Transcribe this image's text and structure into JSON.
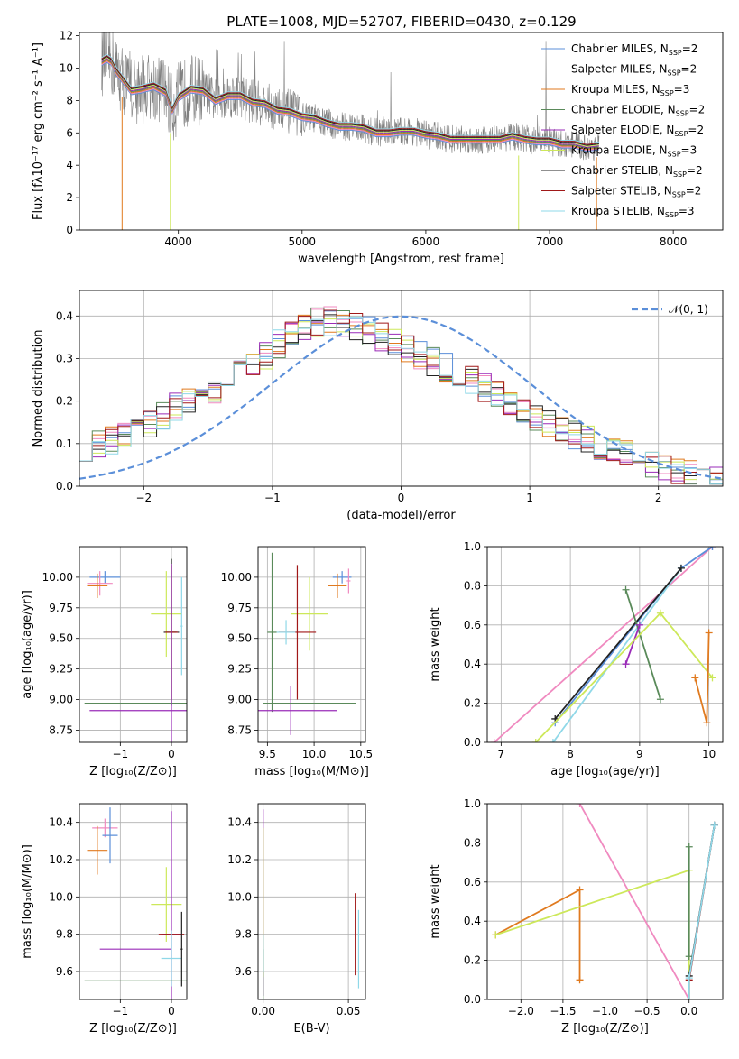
{
  "title": "PLATE=1008, MJD=52707, FIBERID=0430, z=0.129",
  "colors": {
    "chabrier_miles": "#5b8fd9",
    "salpeter_miles": "#f08ac0",
    "kroupa_miles": "#e07a1f",
    "chabrier_elodie": "#5a8a5a",
    "salpeter_elodie": "#9a2bb8",
    "kroupa_elodie": "#cde85a",
    "chabrier_stelib": "#222222",
    "salpeter_stelib": "#a01818",
    "kroupa_stelib": "#8fd8e8",
    "data": "#808080",
    "normal": "#5b8fd9",
    "grid": "#b0b0b0"
  },
  "chart_data": [
    {
      "type": "line",
      "id": "spectrum",
      "xlabel": "wavelength [Angstrom, rest frame]",
      "ylabel": "Flux [fλ10⁻¹⁷ erg cm⁻² s⁻¹ A⁻¹]",
      "xlim": [
        3200,
        8400
      ],
      "ylim": [
        0,
        12.2
      ],
      "xticks": [
        "4000",
        "5000",
        "6000",
        "7000",
        "8000"
      ],
      "yticks": [
        "0",
        "2",
        "4",
        "6",
        "8",
        "10",
        "12"
      ],
      "grid": false,
      "legend_position": "top-right",
      "legend": [
        "Chabrier MILES, N_SSP=2",
        "Salpeter MILES, N_SSP=2",
        "Kroupa MILES, N_SSP=3",
        "Chabrier ELODIE, N_SSP=2",
        "Salpeter ELODIE, N_SSP=2",
        "Kroupa ELODIE, N_SSP=3",
        "Chabrier STELIB, N_SSP=2",
        "Salpeter STELIB, N_SSP=2",
        "Kroupa STELIB, N_SSP=3"
      ],
      "model_curve": {
        "x": [
          3380,
          3420,
          3460,
          3500,
          3560,
          3620,
          3700,
          3800,
          3900,
          3950,
          4000,
          4100,
          4200,
          4300,
          4400,
          4500,
          4600,
          4700,
          4800,
          4900,
          5000,
          5100,
          5200,
          5300,
          5400,
          5500,
          5600,
          5700,
          5800,
          5900,
          6000,
          6100,
          6200,
          6300,
          6400,
          6500,
          6600,
          6700,
          6800,
          6900,
          7000,
          7100,
          7200,
          7300,
          7400
        ],
        "y": [
          10.4,
          10.6,
          10.4,
          9.8,
          9.2,
          8.6,
          8.7,
          8.9,
          8.5,
          7.4,
          8.2,
          8.7,
          8.6,
          8.0,
          8.3,
          8.3,
          7.9,
          7.8,
          7.4,
          7.3,
          7.0,
          6.9,
          6.6,
          6.4,
          6.4,
          6.3,
          6.0,
          6.0,
          6.1,
          6.1,
          5.9,
          5.8,
          5.6,
          5.6,
          5.6,
          5.6,
          5.6,
          5.8,
          5.6,
          5.5,
          5.5,
          5.3,
          5.3,
          5.1,
          5.2
        ]
      },
      "data_curve_note": "observed spectrum drawn in grey"
    },
    {
      "type": "line",
      "id": "residual_hist",
      "xlabel": "(data-model)/error",
      "ylabel": "Normed distribution",
      "xlim": [
        -2.5,
        2.5
      ],
      "ylim": [
        0,
        0.46
      ],
      "xticks": [
        "−2",
        "−1",
        "0",
        "1",
        "2"
      ],
      "yticks": [
        "0.0",
        "0.1",
        "0.2",
        "0.3",
        "0.4"
      ],
      "grid": true,
      "legend_position": "top-right",
      "legend": [
        "𝒩(0, 1)"
      ],
      "bin_width": 0.1,
      "envelope": {
        "x": [
          -2.5,
          -2.2,
          -2.0,
          -1.8,
          -1.5,
          -1.2,
          -1.0,
          -0.8,
          -0.6,
          -0.4,
          -0.2,
          0.0,
          0.2,
          0.4,
          0.6,
          0.8,
          1.0,
          1.2,
          1.5,
          1.8,
          2.0,
          2.2,
          2.5
        ],
        "y": [
          0.09,
          0.11,
          0.13,
          0.18,
          0.22,
          0.27,
          0.32,
          0.37,
          0.39,
          0.38,
          0.36,
          0.33,
          0.3,
          0.27,
          0.24,
          0.21,
          0.17,
          0.14,
          0.1,
          0.07,
          0.05,
          0.03,
          0.02
        ]
      }
    },
    {
      "type": "scatter",
      "id": "age_vs_Z",
      "xlabel": "Z [log₁₀(Z/Z⊙)]",
      "ylabel": "age  [log₁₀(age/yr)]",
      "xlim": [
        -1.8,
        0.3
      ],
      "ylim": [
        8.65,
        10.25
      ],
      "xticks": [
        "−1",
        "0"
      ],
      "yticks": [
        "8.75",
        "9.00",
        "9.25",
        "9.50",
        "9.75",
        "10.00"
      ],
      "grid": true,
      "points": [
        {
          "x": -1.3,
          "y": 10.0,
          "xerr": 0.3,
          "yerr": 0.05,
          "c": "chabrier_miles"
        },
        {
          "x": -1.4,
          "y": 9.95,
          "xerr": 0.25,
          "yerr": 0.1,
          "c": "salpeter_miles"
        },
        {
          "x": -1.45,
          "y": 9.93,
          "xerr": 0.2,
          "yerr": 0.1,
          "c": "kroupa_miles"
        },
        {
          "x": -0.1,
          "y": 9.7,
          "xerr": 0.3,
          "yerr": 0.35,
          "c": "kroupa_elodie"
        },
        {
          "x": 0.0,
          "y": 9.55,
          "xerr": 0.1,
          "yerr": 0.6,
          "c": "chabrier_elodie"
        },
        {
          "x": 0.0,
          "y": 9.55,
          "xerr": 0.15,
          "yerr": 0.6,
          "c": "chabrier_stelib"
        },
        {
          "x": 0.0,
          "y": 9.55,
          "xerr": 0.12,
          "yerr": 0.55,
          "c": "salpeter_stelib"
        },
        {
          "x": 0.0,
          "y": 8.97,
          "xerr": 1.7,
          "yerr": 0.0,
          "c": "chabrier_elodie"
        },
        {
          "x": 0.0,
          "y": 8.91,
          "xerr": 1.6,
          "yerr": 1.2,
          "c": "salpeter_elodie"
        },
        {
          "x": 0.2,
          "y": 9.6,
          "xerr": 0.02,
          "yerr": 0.4,
          "c": "kroupa_stelib"
        }
      ]
    },
    {
      "type": "scatter",
      "id": "age_vs_mass",
      "xlabel": "mass [log₁₀(M/M⊙)]",
      "ylabel": "",
      "xlim": [
        9.4,
        10.55
      ],
      "ylim": [
        8.65,
        10.25
      ],
      "xticks": [
        "9.5",
        "10.0",
        "10.5"
      ],
      "yticks": [
        "8.75",
        "9.00",
        "9.25",
        "9.50",
        "9.75",
        "10.00"
      ],
      "grid": true,
      "points": [
        {
          "x": 10.3,
          "y": 10.0,
          "xerr": 0.1,
          "yerr": 0.05,
          "c": "chabrier_miles"
        },
        {
          "x": 10.37,
          "y": 9.97,
          "xerr": 0.02,
          "yerr": 0.1,
          "c": "salpeter_miles"
        },
        {
          "x": 10.25,
          "y": 9.93,
          "xerr": 0.1,
          "yerr": 0.1,
          "c": "kroupa_miles"
        },
        {
          "x": 9.95,
          "y": 9.7,
          "xerr": 0.2,
          "yerr": 0.3,
          "c": "kroupa_elodie"
        },
        {
          "x": 9.55,
          "y": 9.55,
          "xerr": 0.05,
          "yerr": 0.65,
          "c": "chabrier_elodie"
        },
        {
          "x": 9.82,
          "y": 9.55,
          "xerr": 0.2,
          "yerr": 0.55,
          "c": "salpeter_stelib"
        },
        {
          "x": 9.7,
          "y": 9.55,
          "xerr": 0.1,
          "yerr": 0.1,
          "c": "kroupa_stelib"
        },
        {
          "x": 9.75,
          "y": 8.91,
          "xerr": 0.5,
          "yerr": 0.2,
          "c": "salpeter_elodie"
        },
        {
          "x": 9.95,
          "y": 8.97,
          "xerr": 0.5,
          "yerr": 0.0,
          "c": "chabrier_elodie"
        }
      ]
    },
    {
      "type": "line",
      "id": "weight_vs_age",
      "xlabel": "age  [log₁₀(age/yr)]",
      "ylabel": "mass weight",
      "xlim": [
        6.8,
        10.2
      ],
      "ylim": [
        0,
        1.0
      ],
      "xticks": [
        "7",
        "8",
        "9",
        "10"
      ],
      "yticks": [
        "0.0",
        "0.2",
        "0.4",
        "0.6",
        "0.8",
        "1.0"
      ],
      "grid": true,
      "series": [
        {
          "c": "salpeter_miles",
          "x": [
            6.9,
            10.05
          ],
          "y": [
            0.0,
            1.0
          ]
        },
        {
          "c": "chabrier_miles",
          "x": [
            7.78,
            9.6,
            10.05
          ],
          "y": [
            0.1,
            0.89,
            1.0
          ]
        },
        {
          "c": "kroupa_stelib",
          "x": [
            7.75,
            9.6
          ],
          "y": [
            0.0,
            0.89
          ]
        },
        {
          "c": "chabrier_stelib",
          "x": [
            7.78,
            9.6
          ],
          "y": [
            0.12,
            0.89
          ]
        },
        {
          "c": "chabrier_elodie",
          "x": [
            8.8,
            9.3
          ],
          "y": [
            0.78,
            0.22
          ]
        },
        {
          "c": "salpeter_elodie",
          "x": [
            8.8,
            9.0
          ],
          "y": [
            0.4,
            0.6
          ]
        },
        {
          "c": "kroupa_elodie",
          "x": [
            7.5,
            9.3,
            10.05
          ],
          "y": [
            0.0,
            0.66,
            0.33
          ]
        },
        {
          "c": "kroupa_miles",
          "x": [
            9.8,
            9.97,
            10.0
          ],
          "y": [
            0.33,
            0.1,
            0.56
          ]
        }
      ]
    },
    {
      "type": "scatter",
      "id": "mass_vs_Z",
      "xlabel": "Z [log₁₀(Z/Z⊙)]",
      "ylabel": "mass [log₁₀(M/M⊙)]",
      "xlim": [
        -1.8,
        0.3
      ],
      "ylim": [
        9.45,
        10.5
      ],
      "xticks": [
        "−1",
        "0"
      ],
      "yticks": [
        "9.6",
        "9.8",
        "10.0",
        "10.2",
        "10.4"
      ],
      "grid": true,
      "points": [
        {
          "x": -1.3,
          "y": 10.37,
          "xerr": 0.25,
          "yerr": 0.05,
          "c": "salpeter_miles"
        },
        {
          "x": -1.2,
          "y": 10.33,
          "xerr": 0.15,
          "yerr": 0.15,
          "c": "chabrier_miles"
        },
        {
          "x": -1.45,
          "y": 10.25,
          "xerr": 0.2,
          "yerr": 0.13,
          "c": "kroupa_miles"
        },
        {
          "x": -0.1,
          "y": 9.96,
          "xerr": 0.3,
          "yerr": 0.2,
          "c": "kroupa_elodie"
        },
        {
          "x": 0.0,
          "y": 9.8,
          "xerr": 0.2,
          "yerr": 0.66,
          "c": "salpeter_elodie"
        },
        {
          "x": 0.0,
          "y": 9.8,
          "xerr": 0.25,
          "yerr": 0.0,
          "c": "salpeter_stelib"
        },
        {
          "x": 0.0,
          "y": 9.67,
          "xerr": 0.2,
          "yerr": 0.15,
          "c": "kroupa_stelib"
        },
        {
          "x": -0.7,
          "y": 9.72,
          "xerr": 0.7,
          "yerr": 0.0,
          "c": "salpeter_elodie"
        },
        {
          "x": -0.7,
          "y": 9.55,
          "xerr": 1.0,
          "yerr": 0.0,
          "c": "chabrier_elodie"
        },
        {
          "x": 0.2,
          "y": 9.72,
          "xerr": 0.02,
          "yerr": 0.2,
          "c": "chabrier_stelib"
        }
      ]
    },
    {
      "type": "scatter",
      "id": "mass_vs_EBV",
      "xlabel": "E(B-V)",
      "ylabel": "",
      "xlim": [
        -0.003,
        0.06
      ],
      "ylim": [
        9.45,
        10.5
      ],
      "xticks": [
        "0.00",
        "0.05"
      ],
      "yticks": [
        "9.6",
        "9.8",
        "10.0",
        "10.2",
        "10.4"
      ],
      "grid": true,
      "points": [
        {
          "x": 0.0,
          "y": 9.97,
          "xerr": 0.0,
          "yerr": 0.5,
          "c": "salpeter_elodie"
        },
        {
          "x": 0.0,
          "y": 9.97,
          "xerr": 0.0,
          "yerr": 0.4,
          "c": "kroupa_elodie"
        },
        {
          "x": 0.0,
          "y": 9.57,
          "xerr": 0.0,
          "yerr": 0.15,
          "c": "chabrier_elodie"
        },
        {
          "x": 0.0,
          "y": 9.7,
          "xerr": 0.0,
          "yerr": 0.1,
          "c": "kroupa_stelib"
        },
        {
          "x": 0.054,
          "y": 9.8,
          "xerr": 0.0,
          "yerr": 0.22,
          "c": "salpeter_stelib"
        },
        {
          "x": 0.056,
          "y": 9.72,
          "xerr": 0.0,
          "yerr": 0.21,
          "c": "kroupa_stelib"
        }
      ]
    },
    {
      "type": "line",
      "id": "weight_vs_Z",
      "xlabel": "Z [log₁₀(Z/Z⊙)]",
      "ylabel": "mass weight",
      "xlim": [
        -2.4,
        0.4
      ],
      "ylim": [
        0,
        1.0
      ],
      "xticks": [
        "−2.0",
        "−1.5",
        "−1.0",
        "−0.5",
        "0.0"
      ],
      "yticks": [
        "0.0",
        "0.2",
        "0.4",
        "0.6",
        "0.8",
        "1.0"
      ],
      "grid": true,
      "series": [
        {
          "c": "salpeter_miles",
          "x": [
            -1.3,
            0.0
          ],
          "y": [
            1.0,
            0.0
          ]
        },
        {
          "c": "kroupa_miles",
          "x": [
            -2.3,
            -1.3,
            -1.3
          ],
          "y": [
            0.33,
            0.56,
            0.1
          ]
        },
        {
          "c": "kroupa_elodie",
          "x": [
            -2.3,
            0.0,
            0.0
          ],
          "y": [
            0.33,
            0.66,
            0.0
          ]
        },
        {
          "c": "chabrier_elodie",
          "x": [
            0.0,
            0.0
          ],
          "y": [
            0.22,
            0.78
          ]
        },
        {
          "c": "salpeter_stelib",
          "x": [
            0.0,
            0.0,
            0.3
          ],
          "y": [
            0.0,
            0.1,
            0.89
          ]
        },
        {
          "c": "chabrier_stelib",
          "x": [
            0.0,
            0.3
          ],
          "y": [
            0.12,
            0.89
          ]
        },
        {
          "c": "kroupa_stelib",
          "x": [
            0.0,
            0.0,
            0.3
          ],
          "y": [
            0.0,
            0.11,
            0.89
          ]
        }
      ]
    }
  ]
}
